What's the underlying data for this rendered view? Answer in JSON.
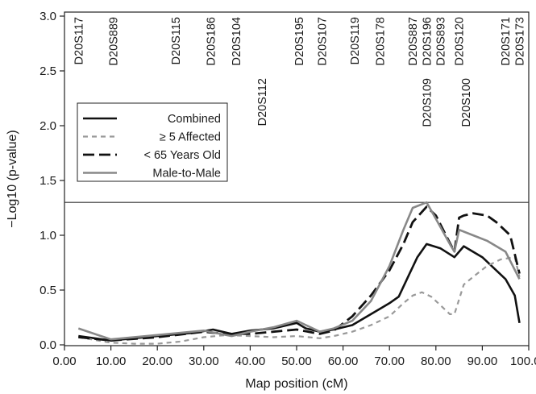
{
  "chart_data": {
    "type": "line",
    "xlabel": "Map position (cM)",
    "ylabel": "−Log10 (p-value)",
    "xlim": [
      0,
      100
    ],
    "ylim": [
      0,
      3
    ],
    "xticks": [
      0,
      10,
      20,
      30,
      40,
      50,
      60,
      70,
      80,
      90,
      100
    ],
    "xtick_labels": [
      "0.00",
      "10.00",
      "20.00",
      "30.00",
      "40.00",
      "50.00",
      "60.00",
      "70.00",
      "80.00",
      "90.00",
      "100.00"
    ],
    "yticks": [
      0,
      0.5,
      1.0,
      1.5,
      2.0,
      2.5,
      3.0
    ],
    "ytick_labels": [
      "0.0",
      "0.5",
      "1.0",
      "1.5",
      "2.0",
      "2.5",
      "3.0"
    ],
    "threshold": 1.3,
    "grid": false,
    "legend_position": "middle-left",
    "markers": [
      {
        "label": "D20S117",
        "x": 3,
        "row": 1
      },
      {
        "label": "D20S889",
        "x": 10.5,
        "row": 1
      },
      {
        "label": "D20S115",
        "x": 24,
        "row": 1
      },
      {
        "label": "D20S186",
        "x": 31.5,
        "row": 1
      },
      {
        "label": "D20S104",
        "x": 37,
        "row": 1
      },
      {
        "label": "D20S112",
        "x": 42.5,
        "row": 2
      },
      {
        "label": "D20S195",
        "x": 50.5,
        "row": 1
      },
      {
        "label": "D20S107",
        "x": 55.5,
        "row": 1
      },
      {
        "label": "D20S119",
        "x": 62.5,
        "row": 1
      },
      {
        "label": "D20S178",
        "x": 68,
        "row": 1
      },
      {
        "label": "D20S887",
        "x": 75,
        "row": 1
      },
      {
        "label": "D20S196",
        "x": 78,
        "row": 1
      },
      {
        "label": "D20S109",
        "x": 78,
        "row": 2
      },
      {
        "label": "D20S893",
        "x": 81,
        "row": 1
      },
      {
        "label": "D20S120",
        "x": 85,
        "row": 1
      },
      {
        "label": "D20S100",
        "x": 86.5,
        "row": 2
      },
      {
        "label": "D20S171",
        "x": 95,
        "row": 1
      },
      {
        "label": "D20S173",
        "x": 98,
        "row": 1
      }
    ],
    "series": [
      {
        "name": "Combined",
        "color": "#111111",
        "style": "solid",
        "points": [
          [
            3,
            0.08
          ],
          [
            10,
            0.04
          ],
          [
            20,
            0.08
          ],
          [
            28,
            0.11
          ],
          [
            32,
            0.14
          ],
          [
            36,
            0.1
          ],
          [
            40,
            0.13
          ],
          [
            45,
            0.15
          ],
          [
            50,
            0.2
          ],
          [
            52,
            0.15
          ],
          [
            55,
            0.12
          ],
          [
            58,
            0.14
          ],
          [
            62,
            0.18
          ],
          [
            66,
            0.28
          ],
          [
            70,
            0.38
          ],
          [
            72,
            0.44
          ],
          [
            74,
            0.62
          ],
          [
            76,
            0.8
          ],
          [
            78,
            0.92
          ],
          [
            81,
            0.88
          ],
          [
            84,
            0.8
          ],
          [
            86,
            0.9
          ],
          [
            90,
            0.8
          ],
          [
            95,
            0.6
          ],
          [
            97,
            0.45
          ],
          [
            98,
            0.2
          ]
        ]
      },
      {
        "name": "≥ 5 Affected",
        "color": "#999999",
        "style": "dash",
        "points": [
          [
            3,
            0.07
          ],
          [
            10,
            0.02
          ],
          [
            15,
            0.01
          ],
          [
            20,
            0.01
          ],
          [
            25,
            0.03
          ],
          [
            30,
            0.07
          ],
          [
            35,
            0.09
          ],
          [
            40,
            0.08
          ],
          [
            45,
            0.07
          ],
          [
            50,
            0.08
          ],
          [
            55,
            0.06
          ],
          [
            58,
            0.08
          ],
          [
            62,
            0.12
          ],
          [
            66,
            0.18
          ],
          [
            70,
            0.26
          ],
          [
            73,
            0.38
          ],
          [
            75,
            0.45
          ],
          [
            77,
            0.48
          ],
          [
            79,
            0.44
          ],
          [
            81,
            0.36
          ],
          [
            83,
            0.28
          ],
          [
            84,
            0.28
          ],
          [
            86,
            0.55
          ],
          [
            88,
            0.62
          ],
          [
            91,
            0.72
          ],
          [
            94,
            0.78
          ],
          [
            97,
            0.8
          ],
          [
            98,
            0.62
          ]
        ]
      },
      {
        "name": "< 65 Years Old",
        "color": "#111111",
        "style": "longdash",
        "points": [
          [
            3,
            0.07
          ],
          [
            10,
            0.04
          ],
          [
            20,
            0.07
          ],
          [
            30,
            0.12
          ],
          [
            32,
            0.11
          ],
          [
            36,
            0.1
          ],
          [
            40,
            0.1
          ],
          [
            45,
            0.12
          ],
          [
            50,
            0.14
          ],
          [
            55,
            0.1
          ],
          [
            58,
            0.13
          ],
          [
            62,
            0.26
          ],
          [
            66,
            0.45
          ],
          [
            70,
            0.68
          ],
          [
            73,
            0.92
          ],
          [
            75,
            1.12
          ],
          [
            78,
            1.26
          ],
          [
            80,
            1.18
          ],
          [
            83,
            0.93
          ],
          [
            84,
            0.85
          ],
          [
            85,
            1.16
          ],
          [
            86,
            1.18
          ],
          [
            88,
            1.2
          ],
          [
            91,
            1.18
          ],
          [
            93,
            1.12
          ],
          [
            96,
            1.0
          ],
          [
            98,
            0.65
          ]
        ]
      },
      {
        "name": "Male-to-Male",
        "color": "#888888",
        "style": "solid",
        "points": [
          [
            3,
            0.15
          ],
          [
            10,
            0.05
          ],
          [
            20,
            0.09
          ],
          [
            30,
            0.13
          ],
          [
            36,
            0.08
          ],
          [
            40,
            0.12
          ],
          [
            45,
            0.16
          ],
          [
            50,
            0.22
          ],
          [
            52,
            0.18
          ],
          [
            55,
            0.12
          ],
          [
            58,
            0.15
          ],
          [
            62,
            0.22
          ],
          [
            66,
            0.4
          ],
          [
            70,
            0.72
          ],
          [
            73,
            1.05
          ],
          [
            75,
            1.25
          ],
          [
            78,
            1.3
          ],
          [
            80,
            1.15
          ],
          [
            83,
            0.92
          ],
          [
            84,
            0.85
          ],
          [
            85,
            1.05
          ],
          [
            88,
            1.0
          ],
          [
            91,
            0.95
          ],
          [
            95,
            0.85
          ],
          [
            98,
            0.6
          ]
        ]
      }
    ]
  }
}
